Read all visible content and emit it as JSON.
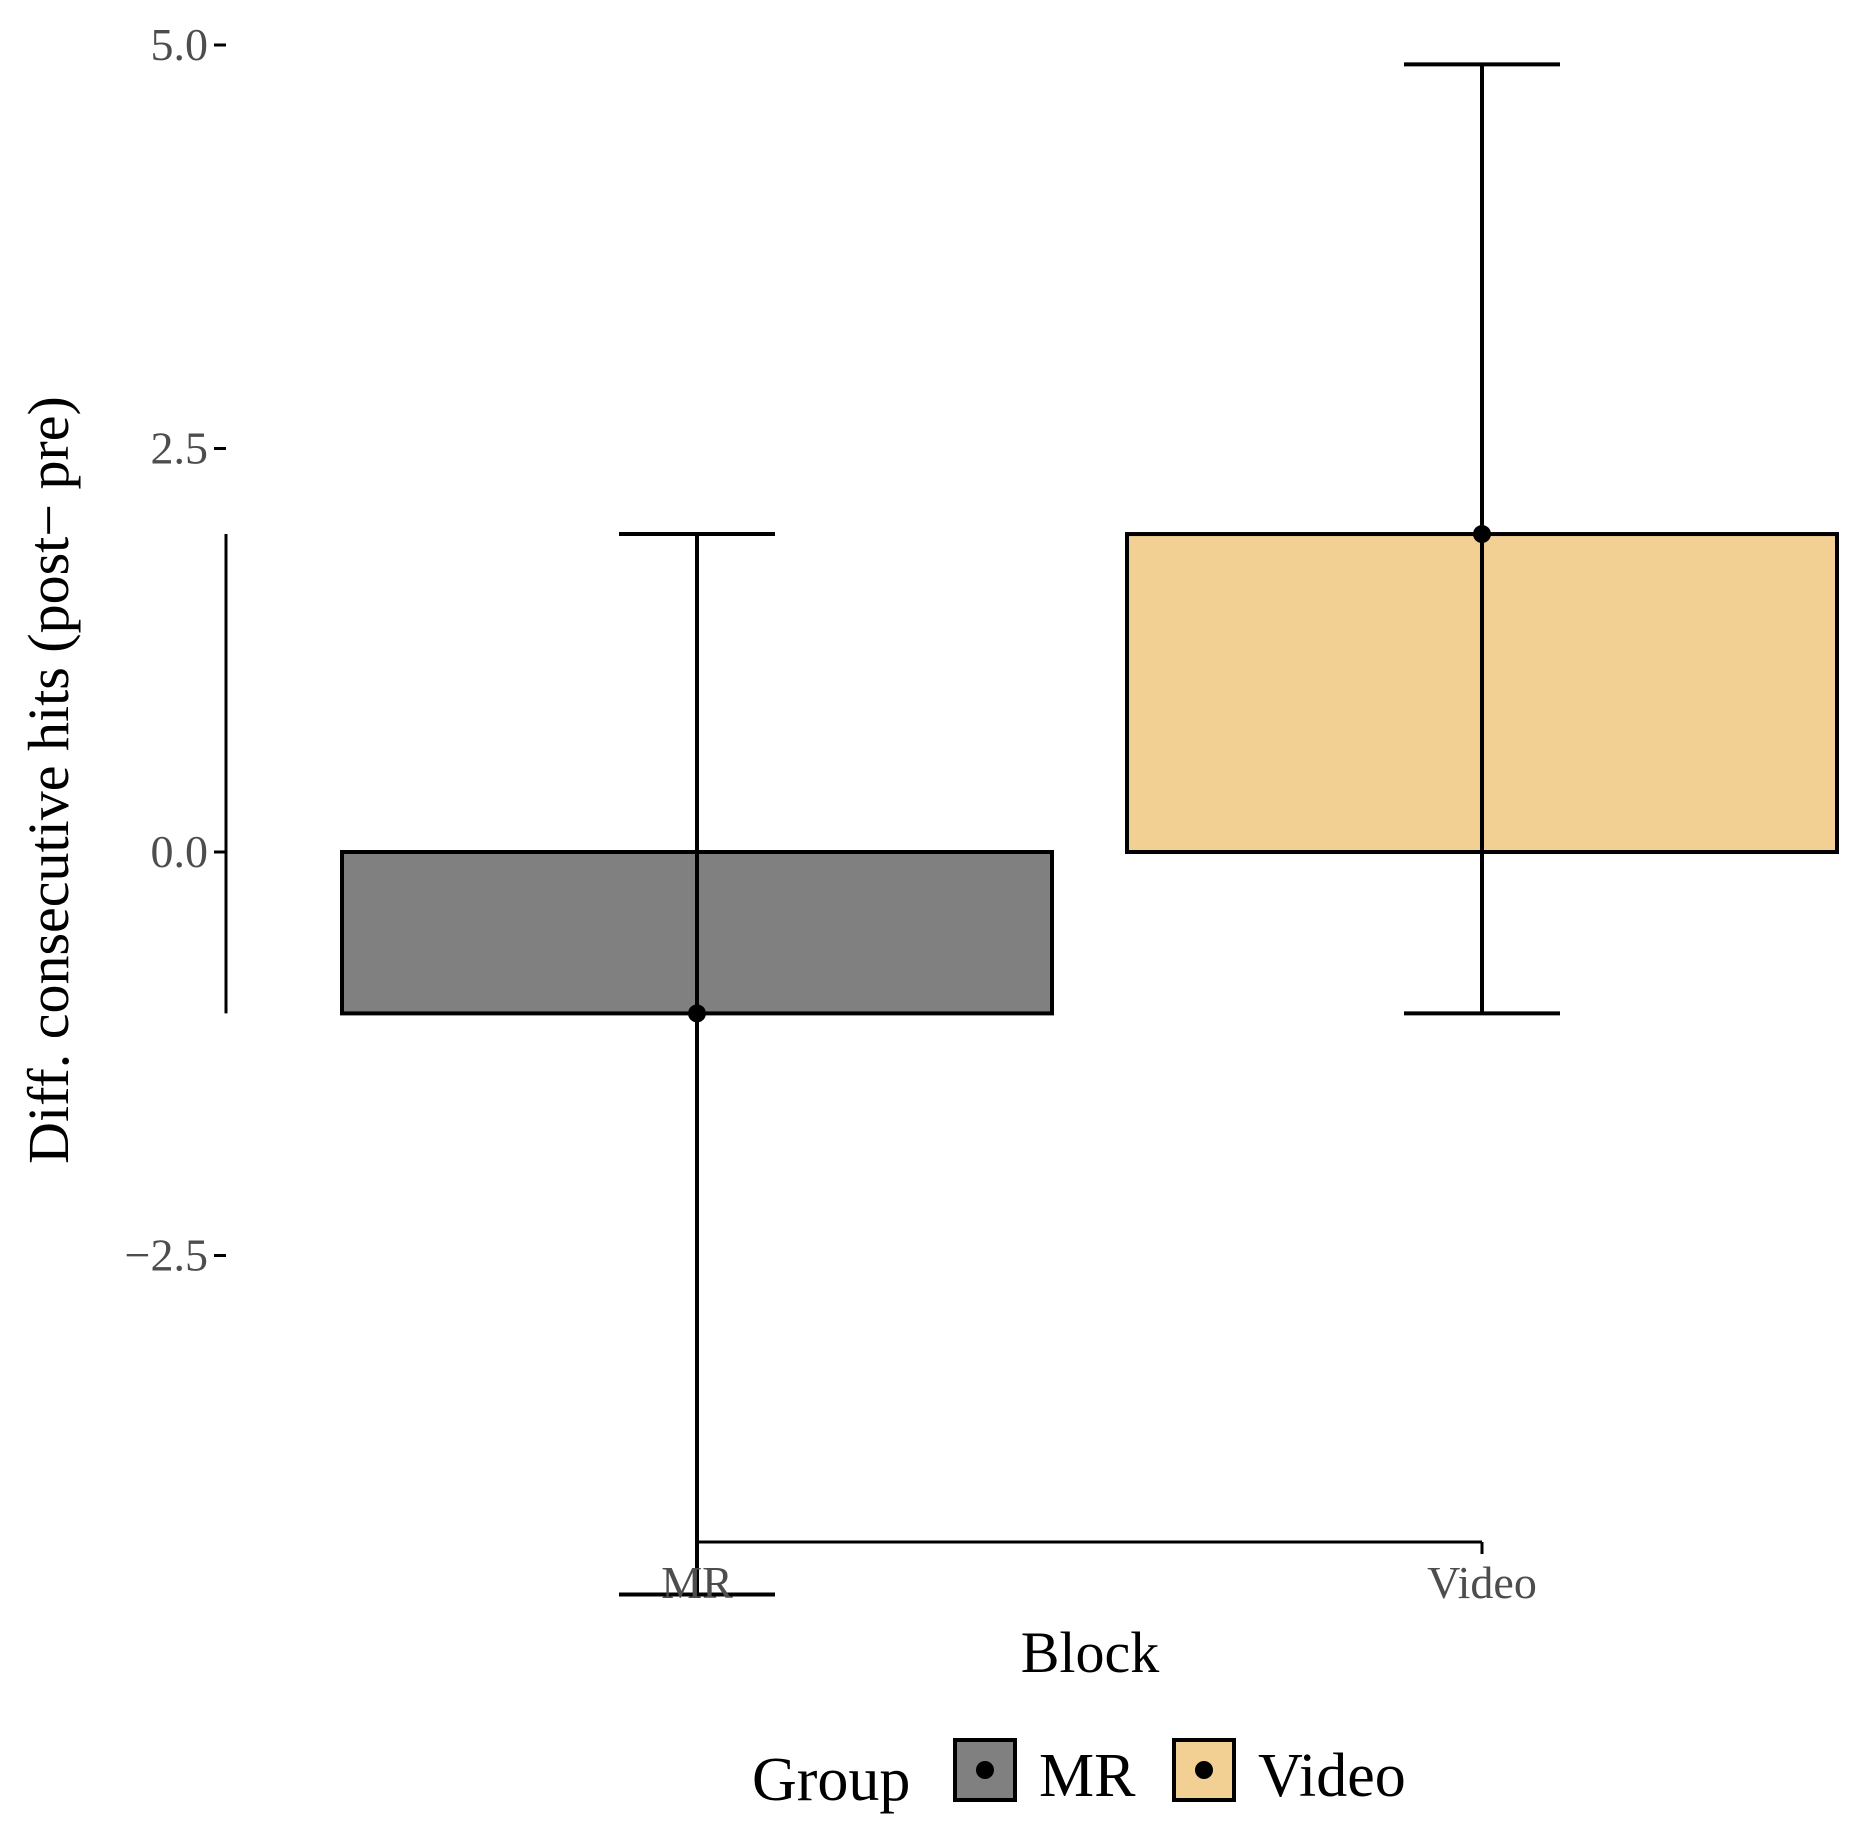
{
  "chart_data": {
    "type": "bar",
    "categories": [
      "MR",
      "Video"
    ],
    "series": [
      {
        "name": "MR",
        "values": [
          -1.0,
          null
        ],
        "error_low": [
          -4.6,
          null
        ],
        "error_high": [
          1.97,
          null
        ],
        "color": "#808080"
      },
      {
        "name": "Video",
        "values": [
          null,
          1.97
        ],
        "error_low": [
          null,
          -1.0
        ],
        "error_high": [
          null,
          4.88
        ],
        "color": "#f2cf93"
      }
    ],
    "yticks": [
      -2.5,
      0.0,
      2.5,
      5.0
    ],
    "ytick_labels": [
      "−2.5",
      "0.0",
      "2.5",
      "5.0"
    ],
    "ylim": [
      -4.6,
      4.88
    ],
    "xlabel": "Block",
    "ylabel": "Diff. consecutive hits (post− pre)",
    "legend": {
      "title": "Group",
      "position": "bottom",
      "entries": [
        "MR",
        "Video"
      ]
    },
    "grid": false
  }
}
